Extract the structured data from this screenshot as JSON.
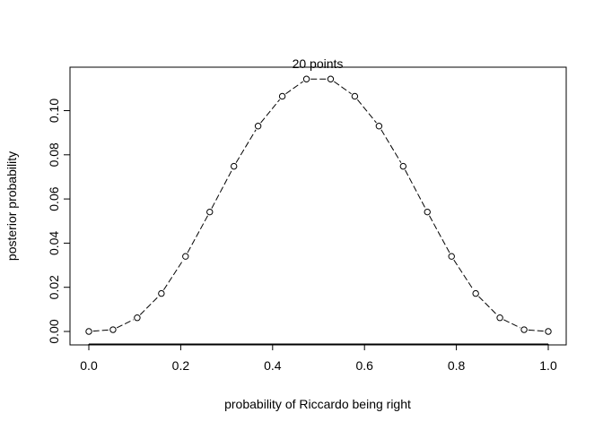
{
  "chart_data": {
    "type": "line",
    "title": "20 points",
    "xlabel": "probability of Riccardo being right",
    "ylabel": "posterior probability",
    "xlim": [
      0,
      1
    ],
    "ylim": [
      0,
      0.114
    ],
    "x_ticks": [
      "0.0",
      "0.2",
      "0.4",
      "0.6",
      "0.8",
      "1.0"
    ],
    "y_ticks": [
      "0.00",
      "0.02",
      "0.04",
      "0.06",
      "0.08",
      "0.10"
    ],
    "x": [
      0.0,
      0.0526,
      0.1053,
      0.1579,
      0.2105,
      0.2632,
      0.3158,
      0.3684,
      0.4211,
      0.4737,
      0.5263,
      0.5789,
      0.6316,
      0.6842,
      0.7368,
      0.7895,
      0.8421,
      0.8947,
      0.9474,
      1.0
    ],
    "values": [
      0.0,
      0.0008,
      0.0062,
      0.0172,
      0.034,
      0.0541,
      0.0748,
      0.093,
      0.1065,
      0.1143,
      0.1143,
      0.1065,
      0.093,
      0.0748,
      0.0541,
      0.034,
      0.0172,
      0.0062,
      0.0008,
      0.0
    ],
    "line_style": "dashed",
    "marker": "open-circle",
    "grid": false
  }
}
